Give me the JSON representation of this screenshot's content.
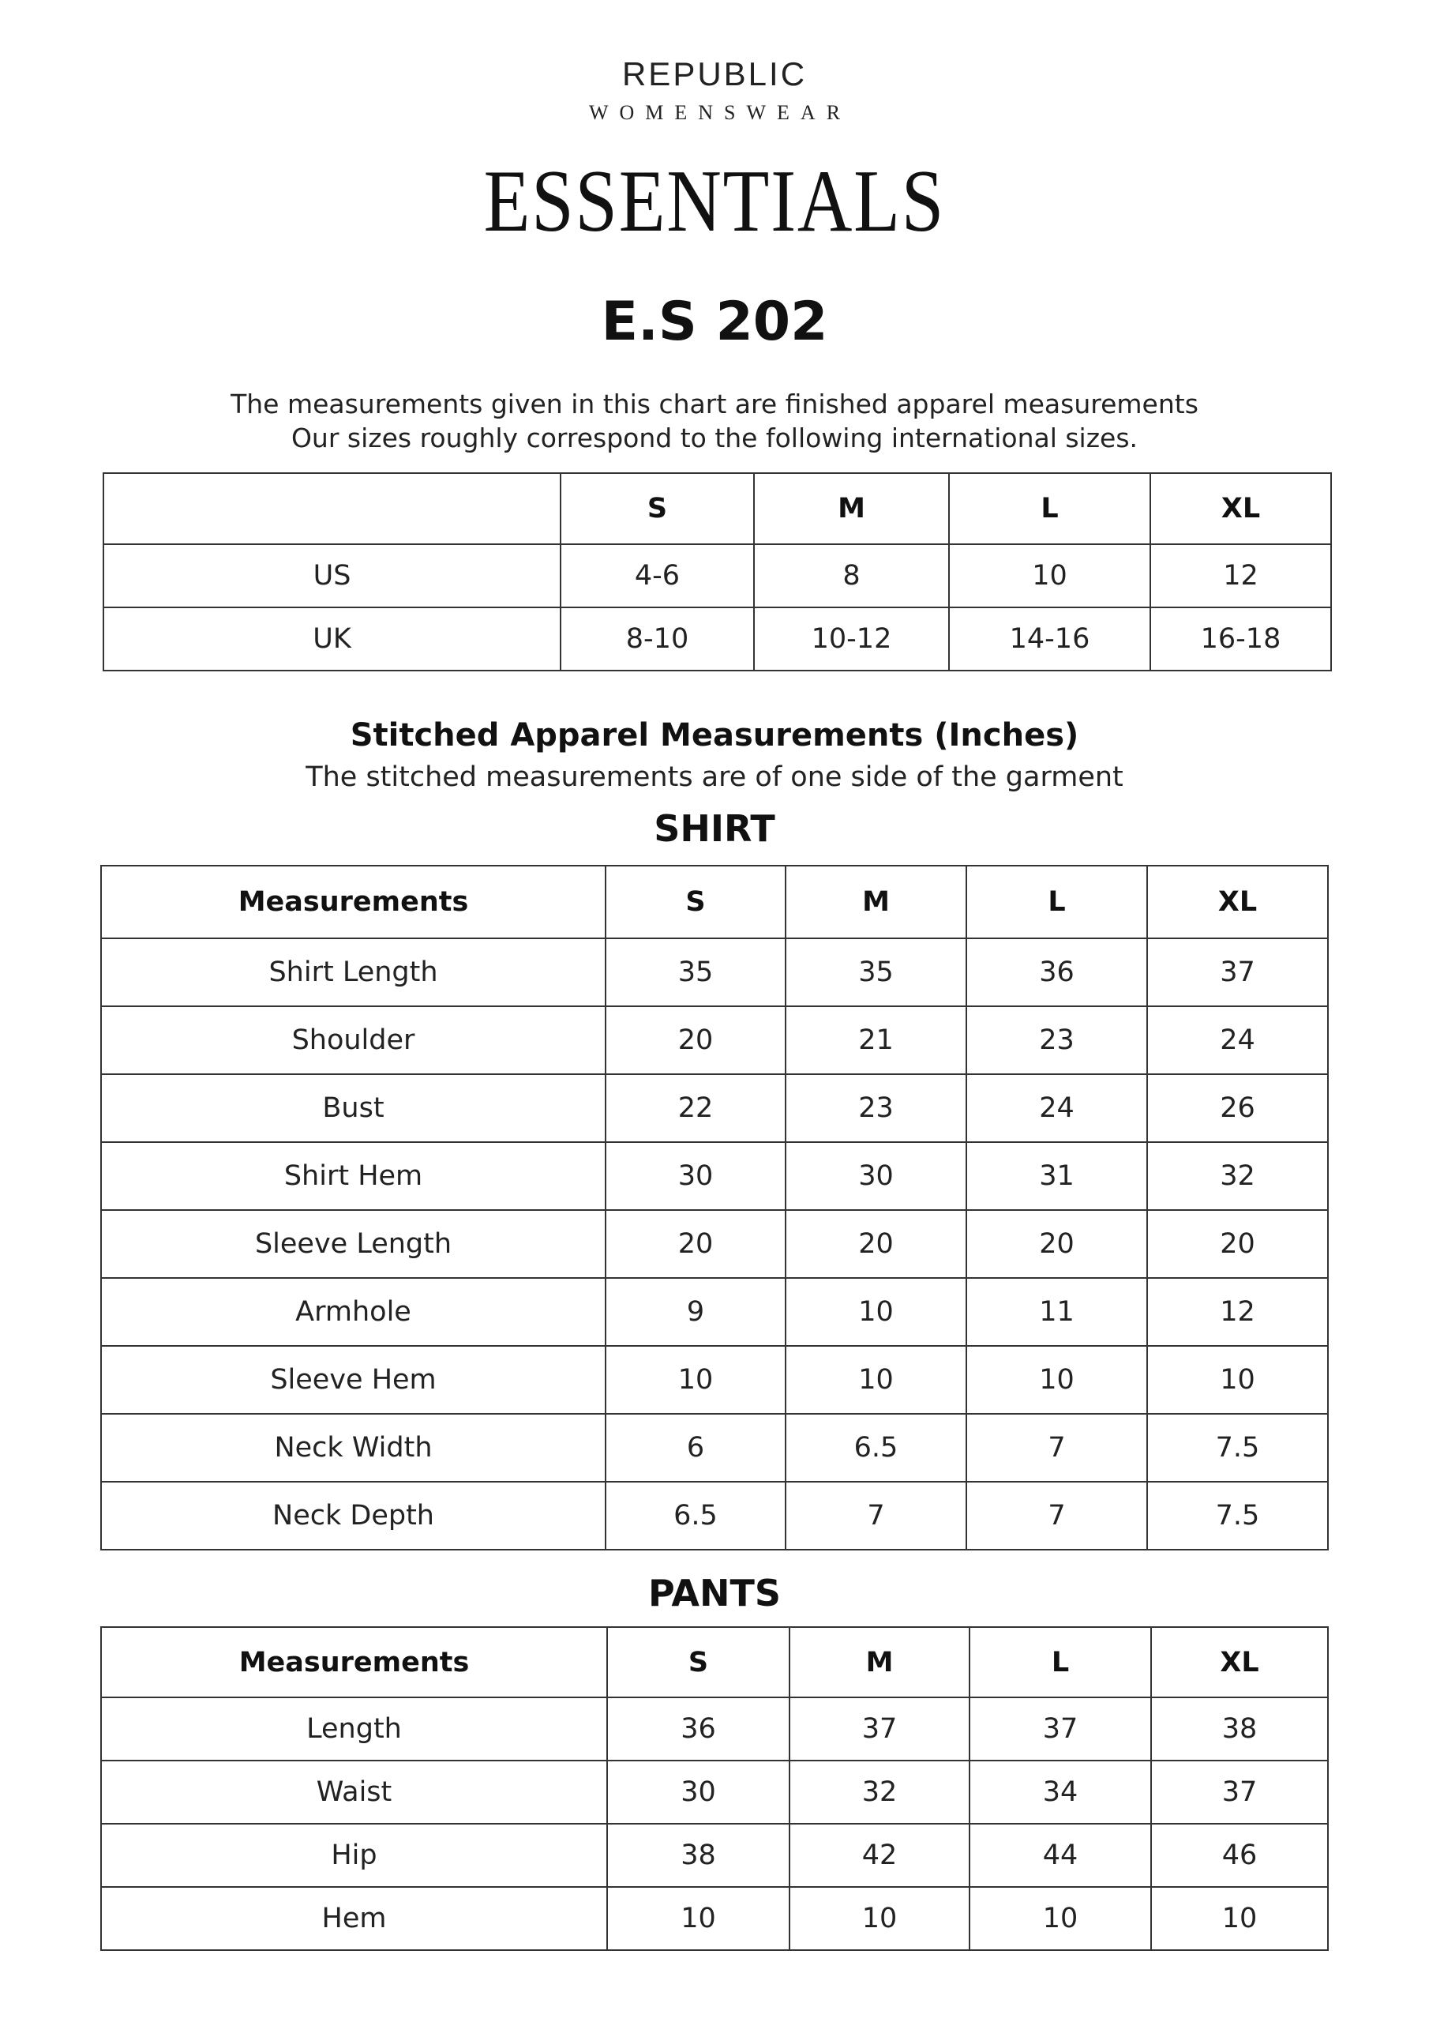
{
  "brand": {
    "name": "REPUBLIC",
    "subname": "WOMENSWEAR"
  },
  "collection": "ESSENTIALS",
  "style_code": "E.S 202",
  "intro": {
    "line1": "The measurements given in this chart are finished apparel measurements",
    "line2": "Our sizes roughly correspond to the following international sizes."
  },
  "size_table": {
    "headers": [
      "",
      "S",
      "M",
      "L",
      "XL"
    ],
    "rows": [
      [
        "US",
        "4-6",
        "8",
        "10",
        "12"
      ],
      [
        "UK",
        "8-10",
        "10-12",
        "14-16",
        "16-18"
      ]
    ]
  },
  "stitched": {
    "title": "Stitched Apparel Measurements (Inches)",
    "note": "The stitched measurements are of one side of the garment"
  },
  "shirt": {
    "title": "SHIRT",
    "headers": [
      "Measurements",
      "S",
      "M",
      "L",
      "XL"
    ],
    "rows": [
      [
        "Shirt Length",
        "35",
        "35",
        "36",
        "37"
      ],
      [
        "Shoulder",
        "20",
        "21",
        "23",
        "24"
      ],
      [
        "Bust",
        "22",
        "23",
        "24",
        "26"
      ],
      [
        "Shirt Hem",
        "30",
        "30",
        "31",
        "32"
      ],
      [
        "Sleeve Length",
        "20",
        "20",
        "20",
        "20"
      ],
      [
        "Armhole",
        "9",
        "10",
        "11",
        "12"
      ],
      [
        "Sleeve Hem",
        "10",
        "10",
        "10",
        "10"
      ],
      [
        "Neck Width",
        "6",
        "6.5",
        "7",
        "7.5"
      ],
      [
        "Neck Depth",
        "6.5",
        "7",
        "7",
        "7.5"
      ]
    ]
  },
  "pants": {
    "title": "PANTS",
    "headers": [
      "Measurements",
      "S",
      "M",
      "L",
      "XL"
    ],
    "rows": [
      [
        "Length",
        "36",
        "37",
        "37",
        "38"
      ],
      [
        "Waist",
        "30",
        "32",
        "34",
        "37"
      ],
      [
        "Hip",
        "38",
        "42",
        "44",
        "46"
      ],
      [
        "Hem",
        "10",
        "10",
        "10",
        "10"
      ]
    ]
  }
}
